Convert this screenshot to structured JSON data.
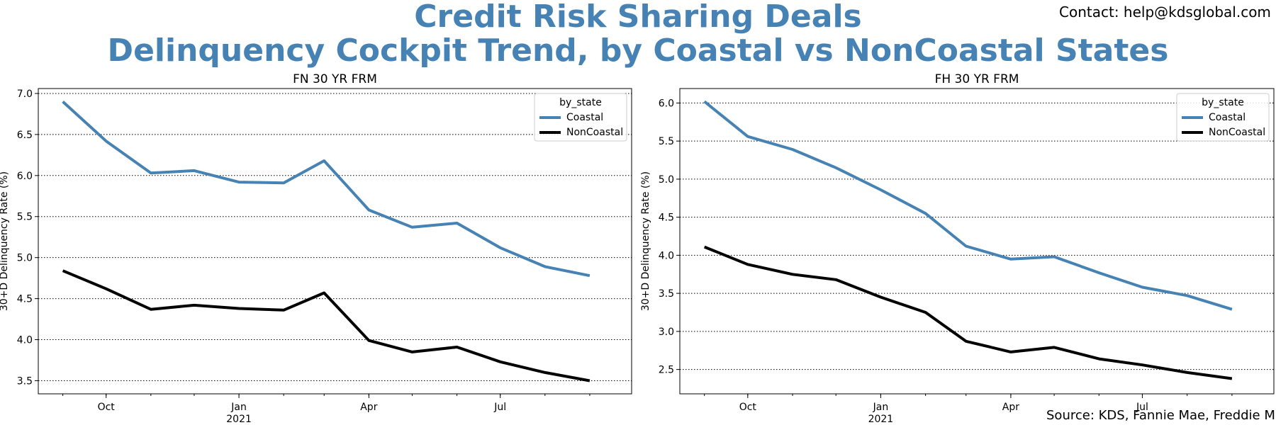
{
  "figure": {
    "title_line1": "Credit Risk Sharing Deals",
    "title_line2": "Delinquency Cockpit Trend, by Coastal vs NonCoastal States",
    "contact": "Contact: help@kdsglobal.com",
    "source": "Source: KDS, Fannie Mae, Freddie Mac",
    "colors": {
      "title": "#4682B4",
      "coastal": "#4682B4",
      "noncoastal": "#000000"
    }
  },
  "chart_data": [
    {
      "type": "line",
      "title": "FN 30 YR FRM",
      "xlabel": "",
      "ylabel": "30+D Delinquency Rate (%)",
      "x": [
        "2020-09",
        "2020-10",
        "2020-11",
        "2020-12",
        "2021-01",
        "2021-02",
        "2021-03",
        "2021-04",
        "2021-05",
        "2021-06",
        "2021-07",
        "2021-08",
        "2021-09"
      ],
      "x_major_ticks": [
        {
          "x": "2020-10",
          "label": "Oct",
          "sublabel": ""
        },
        {
          "x": "2021-01",
          "label": "Jan",
          "sublabel": "2021"
        },
        {
          "x": "2021-04",
          "label": "Apr",
          "sublabel": ""
        },
        {
          "x": "2021-07",
          "label": "Jul",
          "sublabel": ""
        }
      ],
      "xlim": [
        "2020-08-15",
        "2021-09-30"
      ],
      "ylim": [
        3.34,
        7.06
      ],
      "yticks": [
        "3.5",
        "4.0",
        "4.5",
        "5.0",
        "5.5",
        "6.0",
        "6.5",
        "7.0"
      ],
      "grid": "horizontal-dotted",
      "legend": {
        "title": "by_state",
        "placement": "top-right"
      },
      "series": [
        {
          "name": "Coastal",
          "color": "#4682B4",
          "values": [
            6.9,
            6.42,
            6.03,
            6.06,
            5.92,
            5.91,
            6.18,
            5.58,
            5.37,
            5.42,
            5.12,
            4.89,
            4.78
          ]
        },
        {
          "name": "NonCoastal",
          "color": "#000000",
          "values": [
            4.84,
            4.62,
            4.37,
            4.42,
            4.38,
            4.36,
            4.57,
            3.99,
            3.85,
            3.91,
            3.73,
            3.6,
            3.5
          ]
        }
      ]
    },
    {
      "type": "line",
      "title": "FH 30 YR FRM",
      "xlabel": "",
      "ylabel": "30+D Delinquency Rate (%)",
      "x": [
        "2020-09",
        "2020-10",
        "2020-11",
        "2020-12",
        "2021-01",
        "2021-02",
        "2021-03",
        "2021-04",
        "2021-05",
        "2021-06",
        "2021-07",
        "2021-08",
        "2021-09"
      ],
      "x_major_ticks": [
        {
          "x": "2020-10",
          "label": "Oct",
          "sublabel": ""
        },
        {
          "x": "2021-01",
          "label": "Jan",
          "sublabel": "2021"
        },
        {
          "x": "2021-04",
          "label": "Apr",
          "sublabel": ""
        },
        {
          "x": "2021-07",
          "label": "Jul",
          "sublabel": ""
        }
      ],
      "xlim": [
        "2020-08-15",
        "2021-09-30"
      ],
      "ylim": [
        2.18,
        6.19
      ],
      "yticks": [
        "2.5",
        "3.0",
        "3.5",
        "4.0",
        "4.5",
        "5.0",
        "5.5",
        "6.0"
      ],
      "grid": "horizontal-dotted",
      "legend": {
        "title": "by_state",
        "placement": "top-right"
      },
      "series": [
        {
          "name": "Coastal",
          "color": "#4682B4",
          "values": [
            6.02,
            5.56,
            5.39,
            5.15,
            4.86,
            4.55,
            4.12,
            3.95,
            3.98,
            3.77,
            3.58,
            3.47,
            3.29
          ]
        },
        {
          "name": "NonCoastal",
          "color": "#000000",
          "values": [
            4.11,
            3.88,
            3.75,
            3.68,
            3.45,
            3.25,
            2.87,
            2.73,
            2.79,
            2.64,
            2.56,
            2.46,
            2.38
          ]
        }
      ]
    }
  ]
}
